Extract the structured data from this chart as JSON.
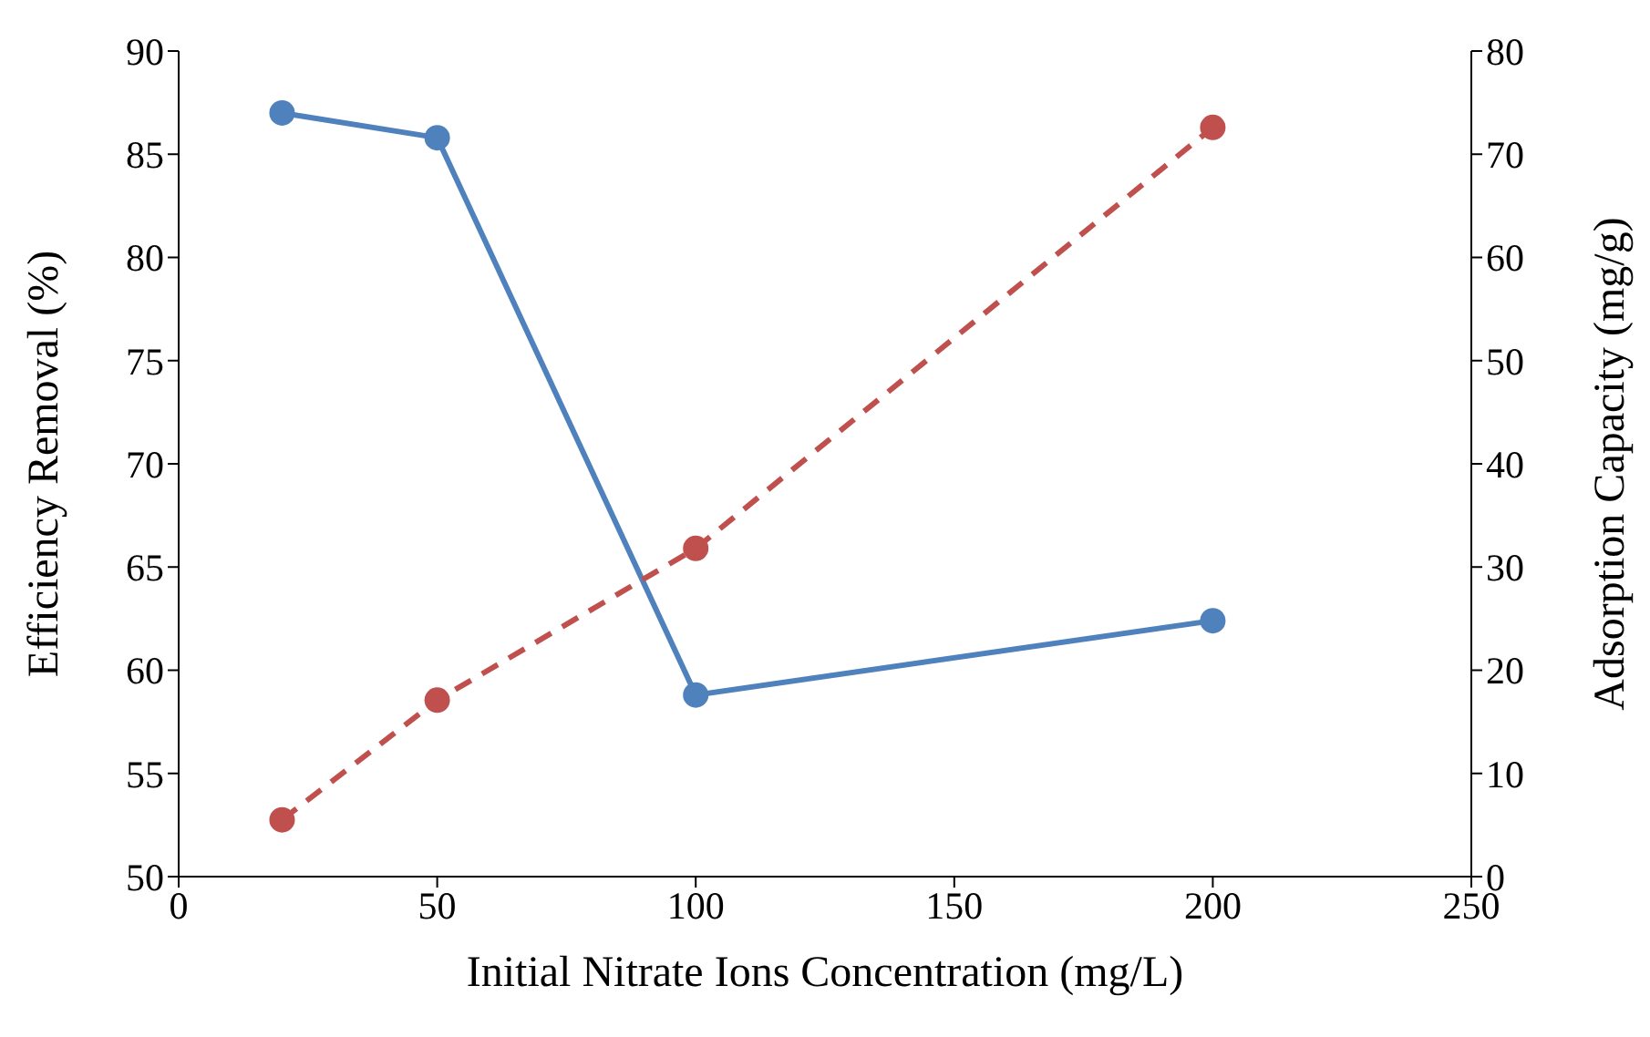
{
  "chart_data": {
    "type": "line",
    "xlabel": "Initial Nitrate Ions Concentration (mg/L)",
    "ylabel": "Efficiency Removal (%)",
    "y2label": "Adsorption Capacity (mg/g)",
    "x": [
      20,
      50,
      100,
      200
    ],
    "series": [
      {
        "color": "#4f81bd",
        "values": [
          87.0,
          85.8,
          58.8,
          62.4
        ],
        "line_style": "solid"
      },
      {
        "color": "#c0504d",
        "values": [
          5.5,
          17.1,
          31.8,
          72.6
        ],
        "line_style": "dashed",
        "axis": "y2"
      }
    ],
    "xlim": [
      0,
      250
    ],
    "xticks": [
      0,
      50,
      100,
      150,
      200,
      250
    ],
    "ylim": [
      50,
      90
    ],
    "yticks": [
      50,
      55,
      60,
      65,
      70,
      75,
      80,
      85,
      90
    ],
    "y2lim": [
      0,
      80
    ],
    "y2ticks": [
      0,
      10,
      20,
      30,
      40,
      50,
      60,
      70,
      80
    ],
    "grid": false,
    "legend": false,
    "marker": "circle"
  }
}
